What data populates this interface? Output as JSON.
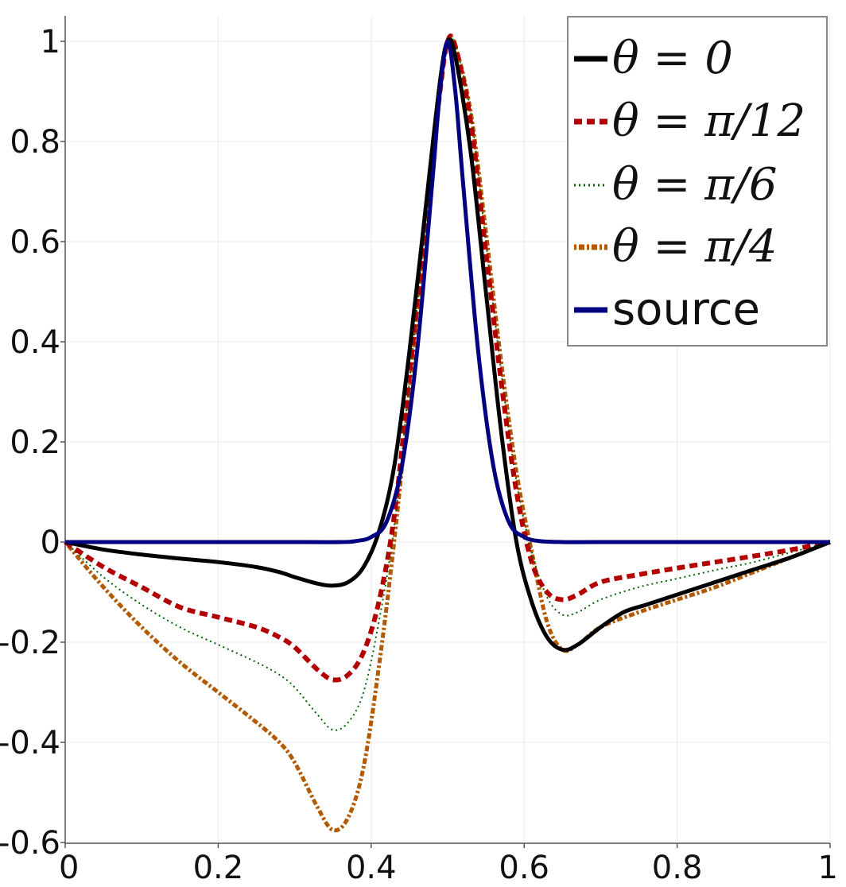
{
  "chart_data": {
    "type": "line",
    "title": "",
    "xlabel": "",
    "ylabel": "",
    "xlim": [
      0,
      1
    ],
    "ylim": [
      -0.6,
      1.05
    ],
    "grid": true,
    "legend_placement": "top-right",
    "xticks": [
      "0",
      "0.2",
      "0.4",
      "0.6",
      "0.8",
      "1"
    ],
    "yticks": [
      "-0.6",
      "-0.4",
      "-0.2",
      "0",
      "0.2",
      "0.4",
      "0.6",
      "0.8",
      "1"
    ],
    "series": [
      {
        "name": "θ = 0",
        "color": "#000000",
        "style": "solid",
        "points": [
          [
            0,
            0
          ],
          [
            0.05,
            -0.015
          ],
          [
            0.1,
            -0.025
          ],
          [
            0.15,
            -0.033
          ],
          [
            0.2,
            -0.04
          ],
          [
            0.25,
            -0.05
          ],
          [
            0.28,
            -0.06
          ],
          [
            0.3,
            -0.07
          ],
          [
            0.33,
            -0.083
          ],
          [
            0.35,
            -0.087
          ],
          [
            0.37,
            -0.08
          ],
          [
            0.39,
            -0.05
          ],
          [
            0.41,
            0.02
          ],
          [
            0.43,
            0.15
          ],
          [
            0.45,
            0.38
          ],
          [
            0.47,
            0.65
          ],
          [
            0.49,
            0.92
          ],
          [
            0.5,
            1.0
          ],
          [
            0.51,
            0.97
          ],
          [
            0.53,
            0.78
          ],
          [
            0.55,
            0.5
          ],
          [
            0.57,
            0.22
          ],
          [
            0.59,
            0.0
          ],
          [
            0.61,
            -0.12
          ],
          [
            0.63,
            -0.19
          ],
          [
            0.65,
            -0.215
          ],
          [
            0.67,
            -0.205
          ],
          [
            0.7,
            -0.17
          ],
          [
            0.73,
            -0.14
          ],
          [
            0.76,
            -0.125
          ],
          [
            0.8,
            -0.105
          ],
          [
            0.85,
            -0.08
          ],
          [
            0.9,
            -0.055
          ],
          [
            0.95,
            -0.03
          ],
          [
            1,
            0
          ]
        ]
      },
      {
        "name": "θ = π/12",
        "color": "#b30000",
        "style": "dashed",
        "points": [
          [
            0,
            0
          ],
          [
            0.05,
            -0.05
          ],
          [
            0.1,
            -0.09
          ],
          [
            0.15,
            -0.13
          ],
          [
            0.2,
            -0.15
          ],
          [
            0.25,
            -0.17
          ],
          [
            0.28,
            -0.19
          ],
          [
            0.3,
            -0.21
          ],
          [
            0.33,
            -0.255
          ],
          [
            0.35,
            -0.275
          ],
          [
            0.37,
            -0.265
          ],
          [
            0.39,
            -0.22
          ],
          [
            0.41,
            -0.12
          ],
          [
            0.43,
            0.05
          ],
          [
            0.45,
            0.33
          ],
          [
            0.47,
            0.62
          ],
          [
            0.49,
            0.9
          ],
          [
            0.5,
            1.0
          ],
          [
            0.51,
            0.99
          ],
          [
            0.53,
            0.84
          ],
          [
            0.55,
            0.58
          ],
          [
            0.57,
            0.32
          ],
          [
            0.59,
            0.1
          ],
          [
            0.61,
            -0.04
          ],
          [
            0.63,
            -0.1
          ],
          [
            0.65,
            -0.115
          ],
          [
            0.67,
            -0.105
          ],
          [
            0.7,
            -0.08
          ],
          [
            0.75,
            -0.065
          ],
          [
            0.8,
            -0.052
          ],
          [
            0.85,
            -0.04
          ],
          [
            0.9,
            -0.028
          ],
          [
            0.95,
            -0.015
          ],
          [
            1,
            0
          ]
        ]
      },
      {
        "name": "θ = π/6",
        "color": "#006600",
        "style": "dotted",
        "points": [
          [
            0,
            0
          ],
          [
            0.05,
            -0.07
          ],
          [
            0.1,
            -0.125
          ],
          [
            0.15,
            -0.17
          ],
          [
            0.2,
            -0.205
          ],
          [
            0.25,
            -0.24
          ],
          [
            0.28,
            -0.265
          ],
          [
            0.3,
            -0.29
          ],
          [
            0.33,
            -0.345
          ],
          [
            0.35,
            -0.375
          ],
          [
            0.37,
            -0.36
          ],
          [
            0.39,
            -0.3
          ],
          [
            0.41,
            -0.16
          ],
          [
            0.43,
            0.03
          ],
          [
            0.45,
            0.32
          ],
          [
            0.47,
            0.62
          ],
          [
            0.49,
            0.9
          ],
          [
            0.5,
            1.0
          ],
          [
            0.51,
            0.99
          ],
          [
            0.53,
            0.86
          ],
          [
            0.55,
            0.6
          ],
          [
            0.57,
            0.34
          ],
          [
            0.59,
            0.12
          ],
          [
            0.61,
            -0.02
          ],
          [
            0.63,
            -0.11
          ],
          [
            0.65,
            -0.145
          ],
          [
            0.67,
            -0.14
          ],
          [
            0.7,
            -0.115
          ],
          [
            0.75,
            -0.09
          ],
          [
            0.8,
            -0.073
          ],
          [
            0.85,
            -0.056
          ],
          [
            0.9,
            -0.04
          ],
          [
            0.95,
            -0.02
          ],
          [
            1,
            0
          ]
        ]
      },
      {
        "name": "θ = π/4",
        "color": "#b35900",
        "style": "dashdot",
        "points": [
          [
            0,
            0
          ],
          [
            0.05,
            -0.09
          ],
          [
            0.1,
            -0.17
          ],
          [
            0.15,
            -0.24
          ],
          [
            0.2,
            -0.3
          ],
          [
            0.25,
            -0.36
          ],
          [
            0.28,
            -0.4
          ],
          [
            0.3,
            -0.44
          ],
          [
            0.33,
            -0.53
          ],
          [
            0.35,
            -0.575
          ],
          [
            0.37,
            -0.55
          ],
          [
            0.39,
            -0.45
          ],
          [
            0.41,
            -0.25
          ],
          [
            0.43,
            0.0
          ],
          [
            0.45,
            0.3
          ],
          [
            0.47,
            0.62
          ],
          [
            0.49,
            0.9
          ],
          [
            0.5,
            1.0
          ],
          [
            0.51,
            0.99
          ],
          [
            0.53,
            0.86
          ],
          [
            0.55,
            0.62
          ],
          [
            0.57,
            0.36
          ],
          [
            0.59,
            0.14
          ],
          [
            0.61,
            -0.02
          ],
          [
            0.63,
            -0.16
          ],
          [
            0.65,
            -0.215
          ],
          [
            0.67,
            -0.205
          ],
          [
            0.7,
            -0.17
          ],
          [
            0.75,
            -0.14
          ],
          [
            0.8,
            -0.115
          ],
          [
            0.85,
            -0.09
          ],
          [
            0.9,
            -0.06
          ],
          [
            0.95,
            -0.03
          ],
          [
            1,
            0
          ]
        ]
      },
      {
        "name": "source",
        "color": "#000080",
        "style": "solid",
        "points": [
          [
            0,
            0
          ],
          [
            0.3,
            0
          ],
          [
            0.36,
            0
          ],
          [
            0.38,
            0.002
          ],
          [
            0.4,
            0.01
          ],
          [
            0.42,
            0.04
          ],
          [
            0.44,
            0.15
          ],
          [
            0.46,
            0.38
          ],
          [
            0.48,
            0.72
          ],
          [
            0.49,
            0.9
          ],
          [
            0.5,
            1.0
          ],
          [
            0.51,
            0.9
          ],
          [
            0.52,
            0.72
          ],
          [
            0.54,
            0.38
          ],
          [
            0.56,
            0.15
          ],
          [
            0.58,
            0.04
          ],
          [
            0.6,
            0.01
          ],
          [
            0.62,
            0.002
          ],
          [
            0.65,
            0
          ],
          [
            0.7,
            0
          ],
          [
            1,
            0
          ]
        ]
      }
    ]
  }
}
